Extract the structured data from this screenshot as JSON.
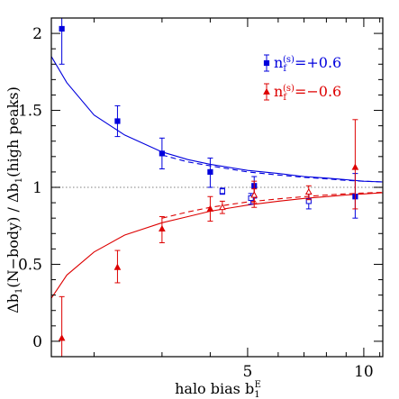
{
  "chart_data": {
    "type": "scatter",
    "title": "",
    "xlabel": {
      "text": "halo bias b",
      "sub": "1",
      "sup": "E"
    },
    "ylabel": {
      "pre": "Δb",
      "sub1": "1",
      "mid": "(N−body) / Δb",
      "sub2": "1",
      "post": "(high peaks)"
    },
    "x_scale": "log",
    "xlim": [
      1.55,
      11.2
    ],
    "ylim": [
      -0.1,
      2.1
    ],
    "x_ticks": [
      {
        "v": 5,
        "label": "5"
      },
      {
        "v": 10,
        "label": "10"
      }
    ],
    "y_ticks": [
      {
        "v": 0,
        "label": "0"
      },
      {
        "v": 0.5,
        "label": "0.5"
      },
      {
        "v": 1,
        "label": "1"
      },
      {
        "v": 1.5,
        "label": "1.5"
      },
      {
        "v": 2,
        "label": "2"
      }
    ],
    "reference_line": {
      "y": 1,
      "style": "dotted",
      "color": "#999999"
    },
    "legend": {
      "position": "top-right",
      "entries": [
        {
          "color": "#0000dd",
          "marker": "square",
          "label_pre": "n",
          "label_sub": "f",
          "label_sup": "(s)",
          "label_post": "=+0.6"
        },
        {
          "color": "#dd0000",
          "marker": "triangle",
          "label_pre": "n",
          "label_sub": "f",
          "label_sup": "(s)",
          "label_post": "=−0.6"
        }
      ]
    },
    "series": [
      {
        "name": "n_f^(s)=+0.6 (filled)",
        "color": "#0000dd",
        "marker": "square-filled",
        "points": [
          {
            "x": 1.65,
            "y": 2.03,
            "lo": 1.8,
            "hi": 2.21
          },
          {
            "x": 2.3,
            "y": 1.43,
            "lo": 1.33,
            "hi": 1.53
          },
          {
            "x": 3.0,
            "y": 1.22,
            "lo": 1.12,
            "hi": 1.32
          },
          {
            "x": 4.0,
            "y": 1.1,
            "lo": 1.0,
            "hi": 1.19
          },
          {
            "x": 5.2,
            "y": 1.01,
            "lo": 0.93,
            "hi": 1.07
          },
          {
            "x": 9.5,
            "y": 0.94,
            "lo": 0.8,
            "hi": 1.09
          }
        ]
      },
      {
        "name": "n_f^(s)=+0.6 (open)",
        "color": "#0000dd",
        "marker": "square-open",
        "points": [
          {
            "x": 4.3,
            "y": 0.975,
            "lo": 0.955,
            "hi": 0.995
          },
          {
            "x": 5.1,
            "y": 0.93,
            "lo": 0.89,
            "hi": 0.96
          },
          {
            "x": 7.2,
            "y": 0.91,
            "lo": 0.86,
            "hi": 0.96
          }
        ]
      },
      {
        "name": "n_f^(s)=−0.6 (filled)",
        "color": "#dd0000",
        "marker": "triangle-filled",
        "points": [
          {
            "x": 1.65,
            "y": 0.02,
            "lo": -0.13,
            "hi": 0.29
          },
          {
            "x": 2.3,
            "y": 0.48,
            "lo": 0.38,
            "hi": 0.59
          },
          {
            "x": 3.0,
            "y": 0.73,
            "lo": 0.64,
            "hi": 0.81
          },
          {
            "x": 4.0,
            "y": 0.86,
            "lo": 0.78,
            "hi": 0.94
          },
          {
            "x": 5.2,
            "y": 0.95,
            "lo": 0.87,
            "hi": 1.04
          },
          {
            "x": 9.5,
            "y": 1.13,
            "lo": 0.86,
            "hi": 1.44
          }
        ]
      },
      {
        "name": "n_f^(s)=−0.6 (open)",
        "color": "#dd0000",
        "marker": "triangle-open",
        "points": [
          {
            "x": 4.3,
            "y": 0.87,
            "lo": 0.83,
            "hi": 0.91
          },
          {
            "x": 5.2,
            "y": 0.95,
            "lo": 0.9,
            "hi": 0.99
          },
          {
            "x": 7.2,
            "y": 0.97,
            "lo": 0.92,
            "hi": 1.01
          }
        ]
      }
    ],
    "curves": [
      {
        "color": "#0000dd",
        "style": "solid",
        "points": [
          [
            1.55,
            1.85
          ],
          [
            1.7,
            1.68
          ],
          [
            2.0,
            1.47
          ],
          [
            2.4,
            1.34
          ],
          [
            3.0,
            1.23
          ],
          [
            3.5,
            1.18
          ],
          [
            4.0,
            1.15
          ],
          [
            5.0,
            1.11
          ],
          [
            6.0,
            1.09
          ],
          [
            7.0,
            1.07
          ],
          [
            8.0,
            1.06
          ],
          [
            9.0,
            1.05
          ],
          [
            10.0,
            1.04
          ],
          [
            11.2,
            1.035
          ]
        ]
      },
      {
        "color": "#0000dd",
        "style": "dashed",
        "points": [
          [
            3.0,
            1.21
          ],
          [
            3.5,
            1.165
          ],
          [
            4.0,
            1.14
          ],
          [
            5.0,
            1.1
          ],
          [
            6.0,
            1.08
          ],
          [
            7.0,
            1.065
          ],
          [
            8.0,
            1.055
          ],
          [
            9.0,
            1.045
          ],
          [
            10.0,
            1.04
          ],
          [
            11.2,
            1.035
          ]
        ]
      },
      {
        "color": "#dd0000",
        "style": "solid",
        "points": [
          [
            1.55,
            0.28
          ],
          [
            1.7,
            0.43
          ],
          [
            2.0,
            0.58
          ],
          [
            2.4,
            0.69
          ],
          [
            3.0,
            0.77
          ],
          [
            3.5,
            0.81
          ],
          [
            4.0,
            0.845
          ],
          [
            5.0,
            0.885
          ],
          [
            6.0,
            0.91
          ],
          [
            7.0,
            0.928
          ],
          [
            8.0,
            0.94
          ],
          [
            9.0,
            0.95
          ],
          [
            10.0,
            0.957
          ],
          [
            11.2,
            0.965
          ]
        ]
      },
      {
        "color": "#dd0000",
        "style": "dashed",
        "points": [
          [
            3.0,
            0.8
          ],
          [
            3.5,
            0.84
          ],
          [
            4.0,
            0.87
          ],
          [
            5.0,
            0.905
          ],
          [
            6.0,
            0.925
          ],
          [
            7.0,
            0.94
          ],
          [
            8.0,
            0.95
          ],
          [
            9.0,
            0.958
          ],
          [
            10.0,
            0.963
          ],
          [
            11.2,
            0.968
          ]
        ]
      }
    ]
  }
}
